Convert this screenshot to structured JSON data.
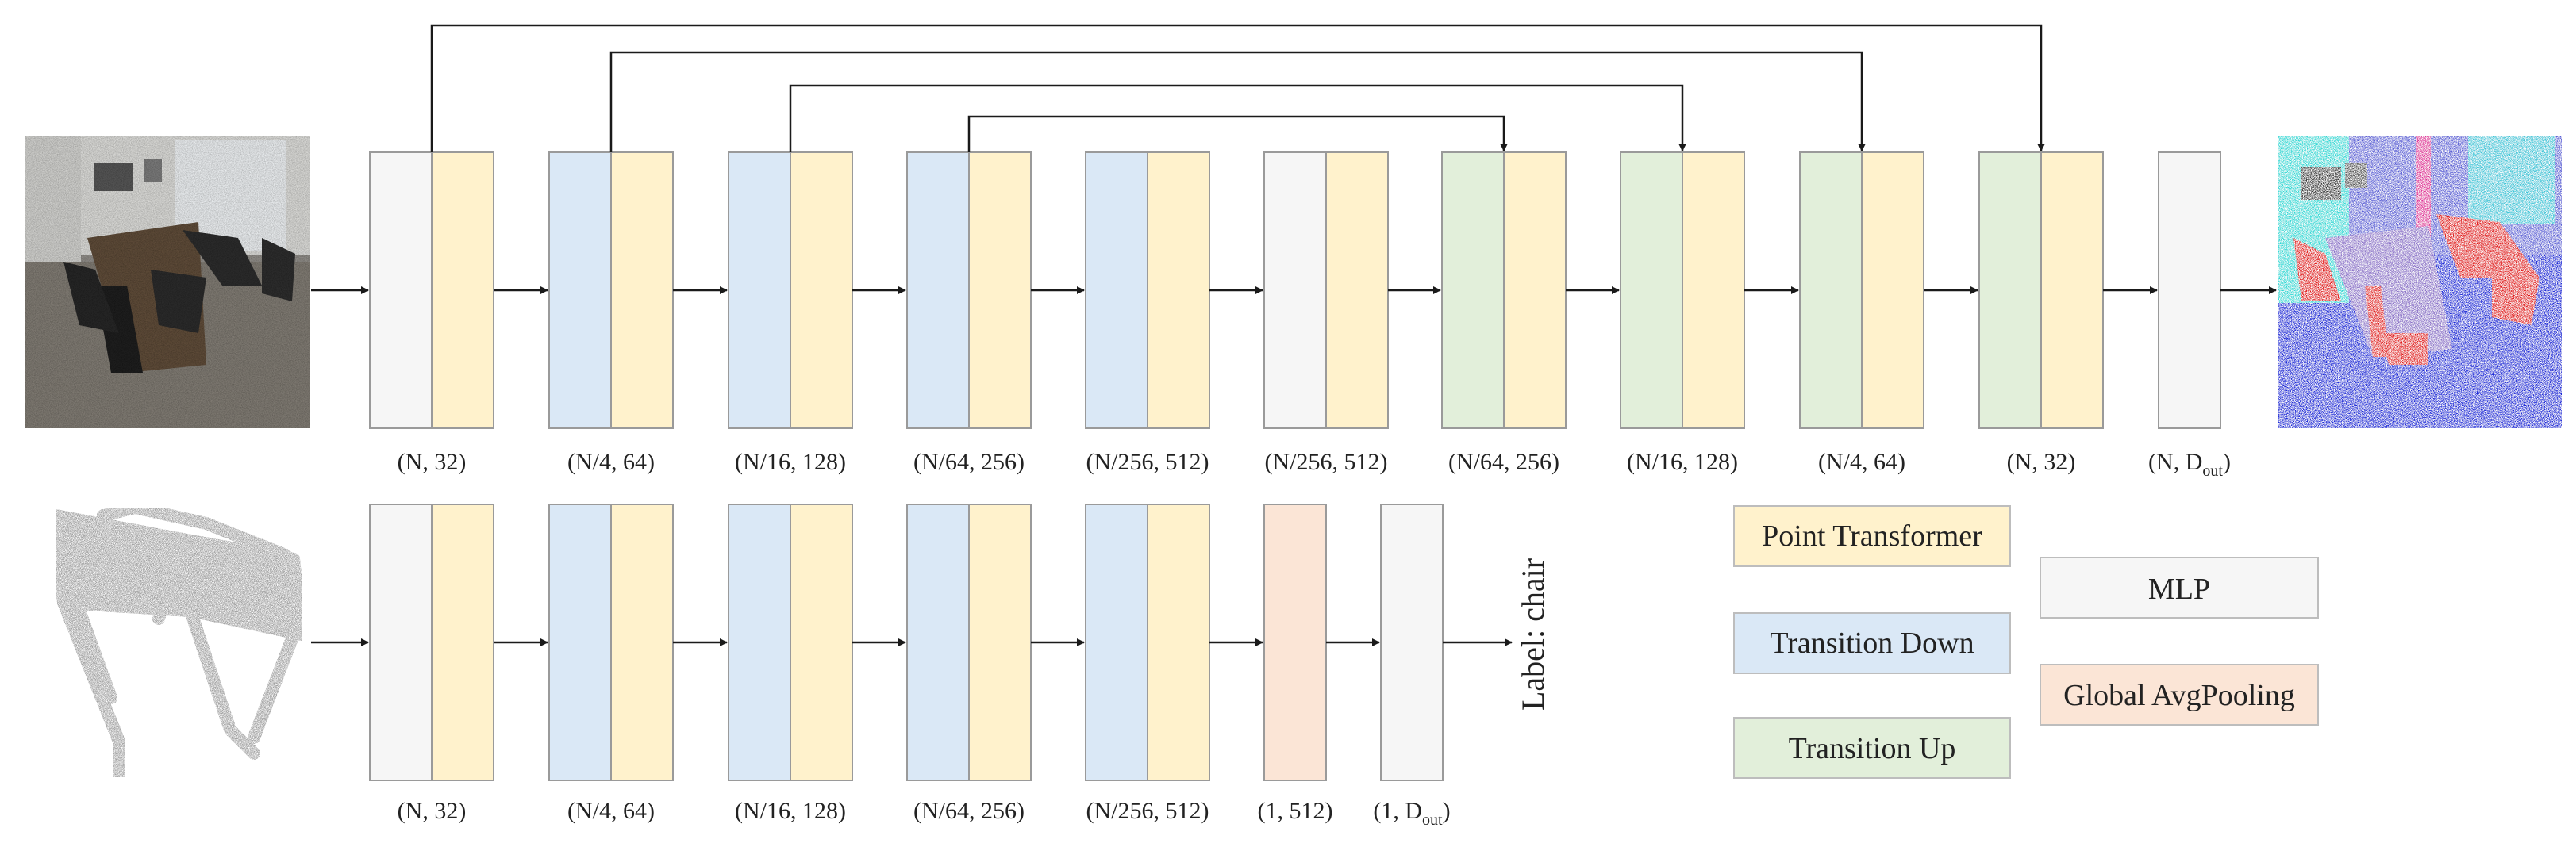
{
  "colors": {
    "point_transformer": "#fff2cc",
    "transition_down": "#dae8f6",
    "transition_up": "#e2efda",
    "mlp": "#f6f6f6",
    "global_avgpooling": "#fbe5d6",
    "block_stroke": "#9a9a9a",
    "arrow": "#1a1a1a"
  },
  "segmentation": {
    "stages": [
      {
        "type": "mlp+point_transformer",
        "label": "(N, 32)"
      },
      {
        "type": "transition_down+point_transformer",
        "label": "(N/4, 64)"
      },
      {
        "type": "transition_down+point_transformer",
        "label": "(N/16, 128)"
      },
      {
        "type": "transition_down+point_transformer",
        "label": "(N/64, 256)"
      },
      {
        "type": "transition_down+point_transformer",
        "label": "(N/256, 512)"
      },
      {
        "type": "mlp+point_transformer",
        "label": "(N/256, 512)"
      },
      {
        "type": "transition_up+point_transformer",
        "label": "(N/64, 256)"
      },
      {
        "type": "transition_up+point_transformer",
        "label": "(N/16, 128)"
      },
      {
        "type": "transition_up+point_transformer",
        "label": "(N/4, 64)"
      },
      {
        "type": "transition_up+point_transformer",
        "label": "(N, 32)"
      },
      {
        "type": "mlp",
        "label": "(N, D",
        "label_sub": "out",
        "label_end": ")"
      }
    ],
    "skip_connections": [
      {
        "from": 0,
        "to": 9
      },
      {
        "from": 1,
        "to": 8
      },
      {
        "from": 2,
        "to": 7
      },
      {
        "from": 3,
        "to": 6
      }
    ],
    "input_image": "point-cloud-office-scene",
    "output_image": "segmented-office-scene"
  },
  "classification": {
    "stages": [
      {
        "type": "mlp+point_transformer",
        "label": "(N, 32)"
      },
      {
        "type": "transition_down+point_transformer",
        "label": "(N/4, 64)"
      },
      {
        "type": "transition_down+point_transformer",
        "label": "(N/16, 128)"
      },
      {
        "type": "transition_down+point_transformer",
        "label": "(N/64, 256)"
      },
      {
        "type": "transition_down+point_transformer",
        "label": "(N/256, 512)"
      },
      {
        "type": "global_avgpooling",
        "label": "(1, 512)"
      },
      {
        "type": "mlp",
        "label": "(1, D",
        "label_sub": "out",
        "label_end": ")"
      }
    ],
    "input_image": "point-cloud-chair",
    "output_label": "Label: chair"
  },
  "legend": {
    "point_transformer": "Point Transformer",
    "transition_down": "Transition Down",
    "transition_up": "Transition Up",
    "mlp": "MLP",
    "global_avgpooling": "Global AvgPooling"
  }
}
